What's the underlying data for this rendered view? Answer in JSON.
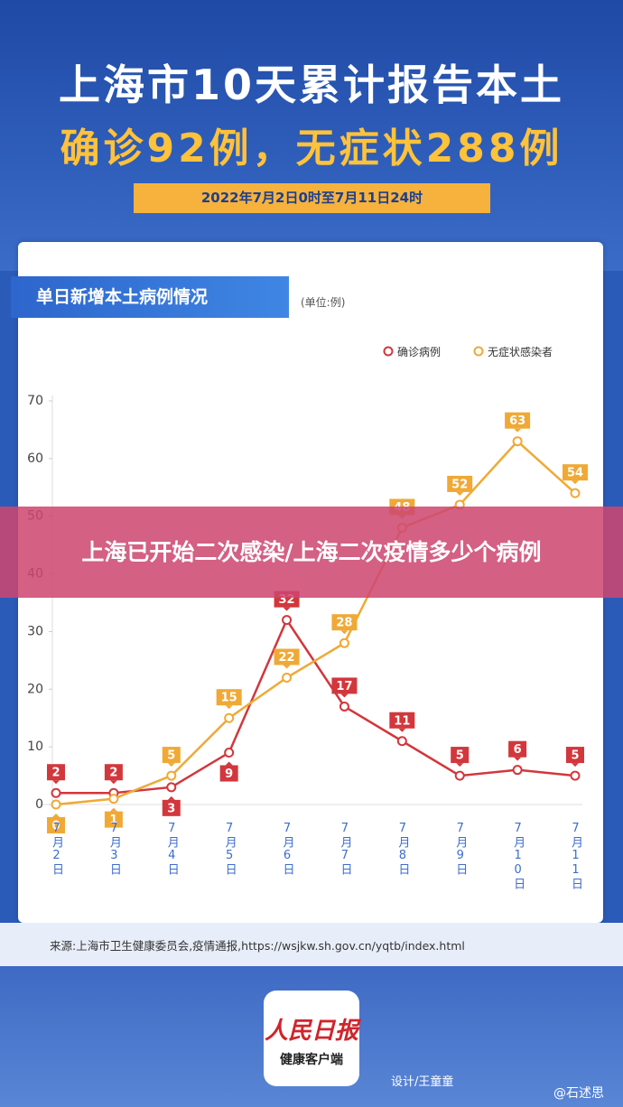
{
  "header": {
    "title": "上海市10天累计报告本土",
    "subtitle": "确诊92例，无症状288例",
    "date": "2022年7月2日0时至7月11日24时"
  },
  "chart_data": {
    "type": "line",
    "title": "单日新增本土病例情况",
    "unit": "(单位:例)",
    "categories": [
      "7月2日",
      "7月3日",
      "7月4日",
      "7月5日",
      "7月6日",
      "7月7日",
      "7月8日",
      "7月9日",
      "7月10日",
      "7月11日"
    ],
    "series": [
      {
        "name": "确诊病例",
        "color": "#d2373c",
        "values": [
          2,
          2,
          3,
          9,
          32,
          17,
          11,
          5,
          6,
          5
        ]
      },
      {
        "name": "无症状感染者",
        "color": "#f0a935",
        "values": [
          0,
          1,
          5,
          15,
          22,
          28,
          48,
          52,
          63,
          54
        ]
      }
    ],
    "ylim": [
      0,
      70
    ],
    "yticks": [
      0,
      10,
      20,
      30,
      40,
      50,
      60,
      70
    ],
    "grid": false
  },
  "source": "来源:上海市卫生健康委员会,疫情通报,https://wsjkw.sh.gov.cn/yqtb/index.html",
  "logo": {
    "brand": "人民日报",
    "app": "健康客户端"
  },
  "credit": "设计/王童童",
  "watermark": "@石述思",
  "banner": "上海已开始二次感染/上海二次疫情多少个病例"
}
